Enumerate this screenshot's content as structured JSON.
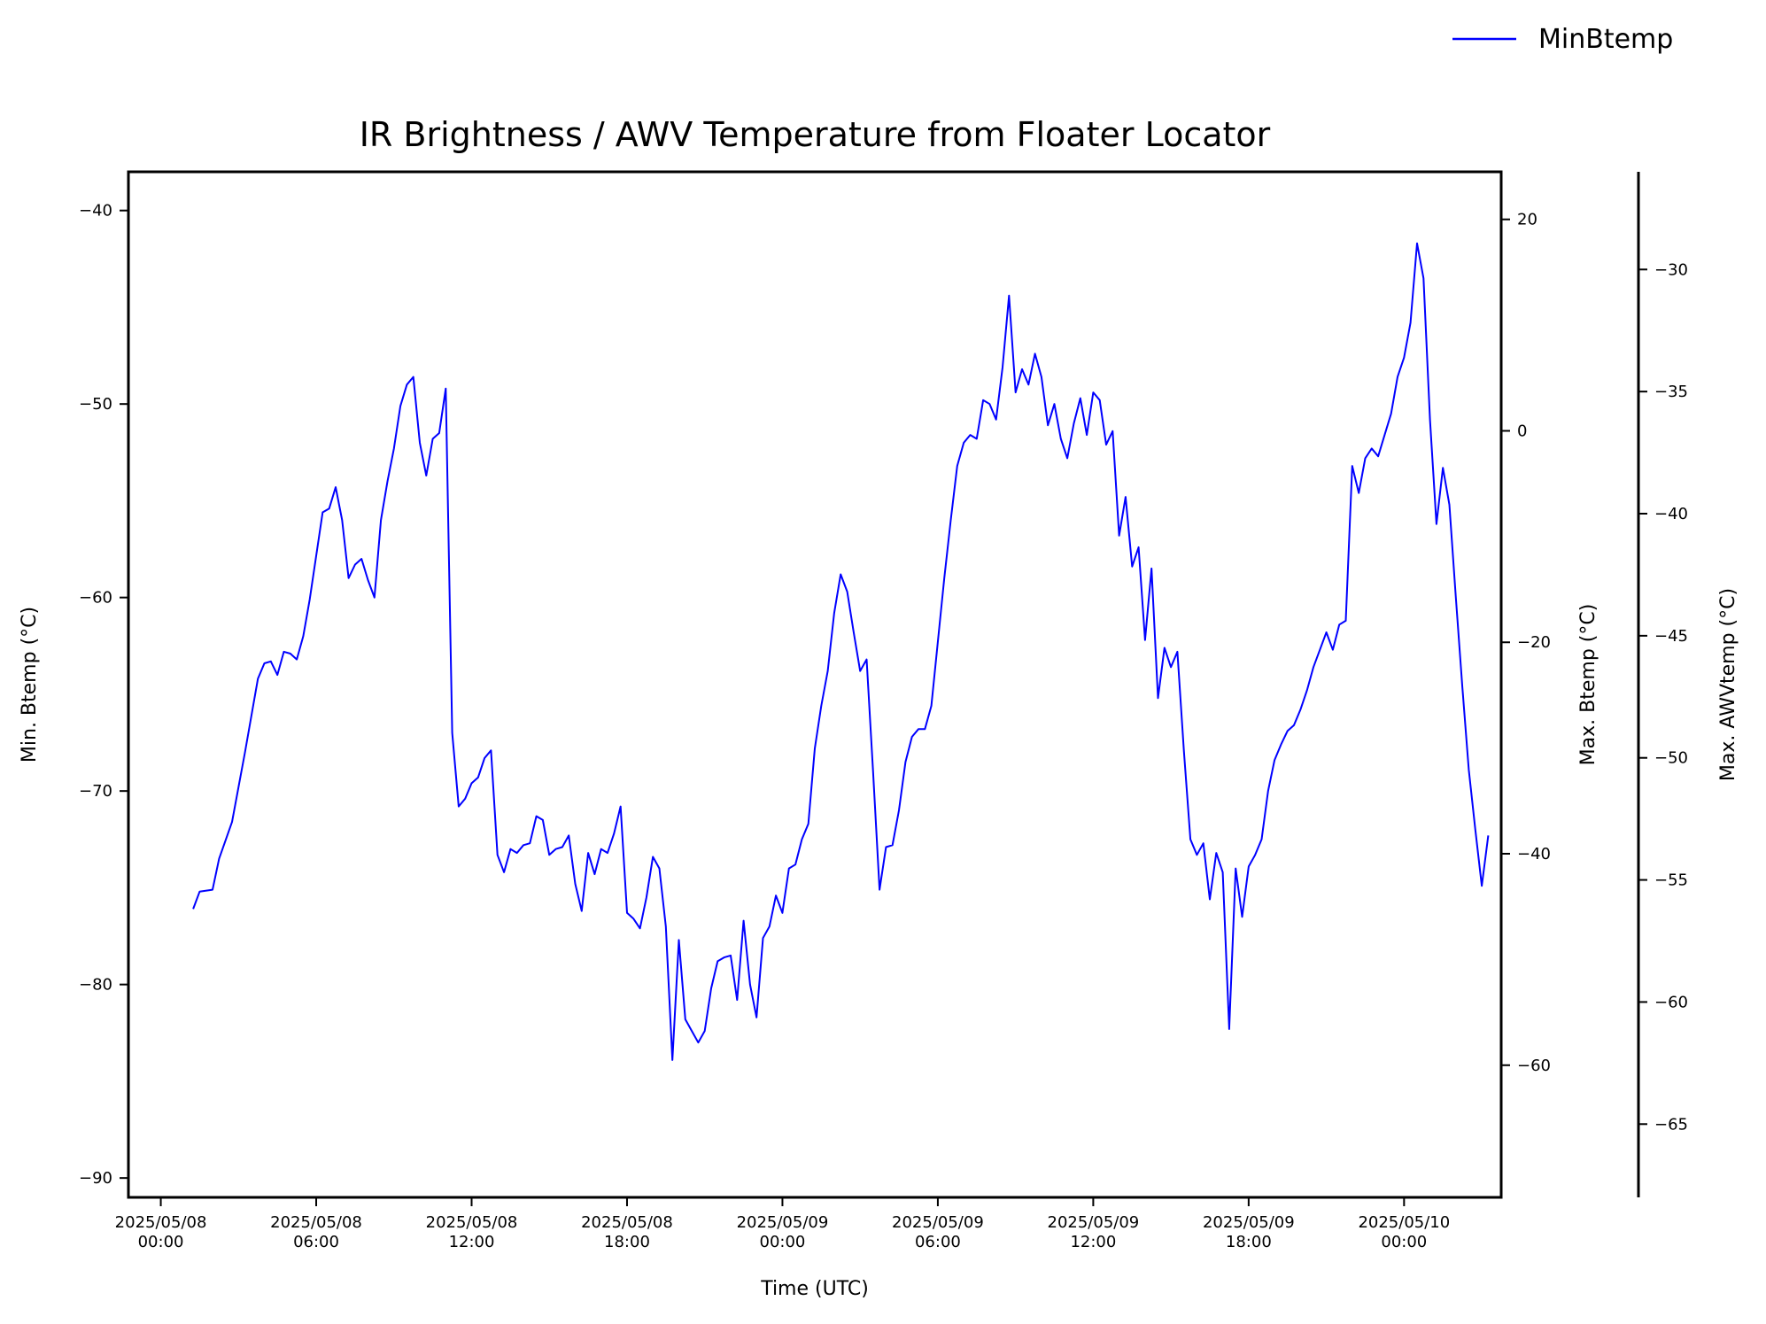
{
  "chart_data": {
    "type": "line",
    "title": "IR Brightness / AWV Temperature from Floater Locator",
    "xlabel": "Time (UTC)",
    "x_unit_note": "",
    "xlim": [
      "2025-05-07T22:45",
      "2025-05-10T03:45"
    ],
    "xticks": [
      {
        "x": "2025-05-08T00:00",
        "line1": "2025/05/08",
        "line2": "00:00"
      },
      {
        "x": "2025-05-08T06:00",
        "line1": "2025/05/08",
        "line2": "06:00"
      },
      {
        "x": "2025-05-08T12:00",
        "line1": "2025/05/08",
        "line2": "12:00"
      },
      {
        "x": "2025-05-08T18:00",
        "line1": "2025/05/08",
        "line2": "18:00"
      },
      {
        "x": "2025-05-09T00:00",
        "line1": "2025/05/09",
        "line2": "00:00"
      },
      {
        "x": "2025-05-09T06:00",
        "line1": "2025/05/09",
        "line2": "06:00"
      },
      {
        "x": "2025-05-09T12:00",
        "line1": "2025/05/09",
        "line2": "12:00"
      },
      {
        "x": "2025-05-09T18:00",
        "line1": "2025/05/09",
        "line2": "18:00"
      },
      {
        "x": "2025-05-10T00:00",
        "line1": "2025/05/10",
        "line2": "00:00"
      }
    ],
    "axes": {
      "left": {
        "label": "Min. Btemp (°C)",
        "ylim": [
          -91,
          -38
        ],
        "ticks": [
          -40,
          -50,
          -60,
          -70,
          -80,
          -90
        ]
      },
      "right1": {
        "label": "Max. Btemp (°C)",
        "ylim": [
          -72.5,
          24.5
        ],
        "ticks": [
          20,
          0,
          -20,
          -40,
          -60
        ]
      },
      "right2": {
        "label": "Max. AWVtemp (°C)",
        "ylim": [
          -68,
          -26
        ],
        "ticks": [
          -30,
          -35,
          -40,
          -45,
          -50,
          -55,
          -60,
          -65
        ]
      }
    },
    "legend_position": "top-right, outside axes",
    "series": [
      {
        "name": "MinBtemp",
        "axis": "left",
        "color": "#0000ff",
        "style": "solid",
        "points": [
          [
            "2025-05-08T01:15",
            -76.1
          ],
          [
            "2025-05-08T01:30",
            -75.2
          ],
          [
            "2025-05-08T02:00",
            -75.1
          ],
          [
            "2025-05-08T02:15",
            -73.5
          ],
          [
            "2025-05-08T02:45",
            -71.6
          ],
          [
            "2025-05-08T03:15",
            -68.0
          ],
          [
            "2025-05-08T03:45",
            -64.2
          ],
          [
            "2025-05-08T04:00",
            -63.4
          ],
          [
            "2025-05-08T04:15",
            -63.3
          ],
          [
            "2025-05-08T04:30",
            -64.0
          ],
          [
            "2025-05-08T04:45",
            -62.8
          ],
          [
            "2025-05-08T05:00",
            -62.9
          ],
          [
            "2025-05-08T05:15",
            -63.2
          ],
          [
            "2025-05-08T05:30",
            -62.0
          ],
          [
            "2025-05-08T05:45",
            -60.1
          ],
          [
            "2025-05-08T06:15",
            -55.6
          ],
          [
            "2025-05-08T06:30",
            -55.4
          ],
          [
            "2025-05-08T06:45",
            -54.3
          ],
          [
            "2025-05-08T07:00",
            -56.0
          ],
          [
            "2025-05-08T07:15",
            -59.0
          ],
          [
            "2025-05-08T07:30",
            -58.3
          ],
          [
            "2025-05-08T07:45",
            -58.0
          ],
          [
            "2025-05-08T08:00",
            -59.1
          ],
          [
            "2025-05-08T08:15",
            -60.0
          ],
          [
            "2025-05-08T08:30",
            -56.0
          ],
          [
            "2025-05-08T08:45",
            -54.0
          ],
          [
            "2025-05-08T09:00",
            -52.3
          ],
          [
            "2025-05-08T09:15",
            -50.1
          ],
          [
            "2025-05-08T09:30",
            -49.0
          ],
          [
            "2025-05-08T09:45",
            -48.6
          ],
          [
            "2025-05-08T10:00",
            -52.0
          ],
          [
            "2025-05-08T10:15",
            -53.7
          ],
          [
            "2025-05-08T10:30",
            -51.8
          ],
          [
            "2025-05-08T10:45",
            -51.5
          ],
          [
            "2025-05-08T11:00",
            -49.2
          ],
          [
            "2025-05-08T11:15",
            -67.0
          ],
          [
            "2025-05-08T11:30",
            -70.8
          ],
          [
            "2025-05-08T11:45",
            -70.4
          ],
          [
            "2025-05-08T12:00",
            -69.6
          ],
          [
            "2025-05-08T12:15",
            -69.3
          ],
          [
            "2025-05-08T12:30",
            -68.3
          ],
          [
            "2025-05-08T12:45",
            -67.9
          ],
          [
            "2025-05-08T13:00",
            -73.3
          ],
          [
            "2025-05-08T13:15",
            -74.2
          ],
          [
            "2025-05-08T13:30",
            -73.0
          ],
          [
            "2025-05-08T13:45",
            -73.2
          ],
          [
            "2025-05-08T14:00",
            -72.8
          ],
          [
            "2025-05-08T14:15",
            -72.7
          ],
          [
            "2025-05-08T14:30",
            -71.3
          ],
          [
            "2025-05-08T14:45",
            -71.5
          ],
          [
            "2025-05-08T15:00",
            -73.3
          ],
          [
            "2025-05-08T15:15",
            -73.0
          ],
          [
            "2025-05-08T15:30",
            -72.9
          ],
          [
            "2025-05-08T15:45",
            -72.3
          ],
          [
            "2025-05-08T16:00",
            -74.8
          ],
          [
            "2025-05-08T16:15",
            -76.2
          ],
          [
            "2025-05-08T16:30",
            -73.2
          ],
          [
            "2025-05-08T16:45",
            -74.3
          ],
          [
            "2025-05-08T17:00",
            -73.0
          ],
          [
            "2025-05-08T17:15",
            -73.2
          ],
          [
            "2025-05-08T17:30",
            -72.2
          ],
          [
            "2025-05-08T17:45",
            -70.8
          ],
          [
            "2025-05-08T18:00",
            -76.3
          ],
          [
            "2025-05-08T18:15",
            -76.6
          ],
          [
            "2025-05-08T18:30",
            -77.1
          ],
          [
            "2025-05-08T18:45",
            -75.5
          ],
          [
            "2025-05-08T19:00",
            -73.4
          ],
          [
            "2025-05-08T19:15",
            -74.0
          ],
          [
            "2025-05-08T19:30",
            -77.0
          ],
          [
            "2025-05-08T19:45",
            -83.9
          ],
          [
            "2025-05-08T20:00",
            -77.7
          ],
          [
            "2025-05-08T20:15",
            -81.8
          ],
          [
            "2025-05-08T20:30",
            -82.4
          ],
          [
            "2025-05-08T20:45",
            -83.0
          ],
          [
            "2025-05-08T21:00",
            -82.4
          ],
          [
            "2025-05-08T21:15",
            -80.2
          ],
          [
            "2025-05-08T21:30",
            -78.8
          ],
          [
            "2025-05-08T21:45",
            -78.6
          ],
          [
            "2025-05-08T22:00",
            -78.5
          ],
          [
            "2025-05-08T22:15",
            -80.8
          ],
          [
            "2025-05-08T22:30",
            -76.7
          ],
          [
            "2025-05-08T22:45",
            -80.0
          ],
          [
            "2025-05-08T23:00",
            -81.7
          ],
          [
            "2025-05-08T23:15",
            -77.6
          ],
          [
            "2025-05-08T23:30",
            -77.0
          ],
          [
            "2025-05-08T23:45",
            -75.4
          ],
          [
            "2025-05-09T00:00",
            -76.3
          ],
          [
            "2025-05-09T00:15",
            -74.0
          ],
          [
            "2025-05-09T00:30",
            -73.8
          ],
          [
            "2025-05-09T00:45",
            -72.5
          ],
          [
            "2025-05-09T01:00",
            -71.7
          ],
          [
            "2025-05-09T01:15",
            -67.8
          ],
          [
            "2025-05-09T01:30",
            -65.6
          ],
          [
            "2025-05-09T01:45",
            -63.8
          ],
          [
            "2025-05-09T02:00",
            -60.8
          ],
          [
            "2025-05-09T02:15",
            -58.8
          ],
          [
            "2025-05-09T02:30",
            -59.7
          ],
          [
            "2025-05-09T02:45",
            -61.8
          ],
          [
            "2025-05-09T03:00",
            -63.8
          ],
          [
            "2025-05-09T03:15",
            -63.2
          ],
          [
            "2025-05-09T03:30",
            -69.0
          ],
          [
            "2025-05-09T03:45",
            -75.1
          ],
          [
            "2025-05-09T04:00",
            -72.9
          ],
          [
            "2025-05-09T04:15",
            -72.8
          ],
          [
            "2025-05-09T04:30",
            -71.0
          ],
          [
            "2025-05-09T04:45",
            -68.5
          ],
          [
            "2025-05-09T05:00",
            -67.2
          ],
          [
            "2025-05-09T05:15",
            -66.8
          ],
          [
            "2025-05-09T05:30",
            -66.8
          ],
          [
            "2025-05-09T05:45",
            -65.6
          ],
          [
            "2025-05-09T06:15",
            -59.0
          ],
          [
            "2025-05-09T06:30",
            -56.0
          ],
          [
            "2025-05-09T06:45",
            -53.2
          ],
          [
            "2025-05-09T07:00",
            -52.0
          ],
          [
            "2025-05-09T07:15",
            -51.6
          ],
          [
            "2025-05-09T07:30",
            -51.8
          ],
          [
            "2025-05-09T07:45",
            -49.8
          ],
          [
            "2025-05-09T08:00",
            -50.0
          ],
          [
            "2025-05-09T08:15",
            -50.8
          ],
          [
            "2025-05-09T08:30",
            -48.1
          ],
          [
            "2025-05-09T08:45",
            -44.4
          ],
          [
            "2025-05-09T09:00",
            -49.4
          ],
          [
            "2025-05-09T09:15",
            -48.2
          ],
          [
            "2025-05-09T09:30",
            -49.0
          ],
          [
            "2025-05-09T09:45",
            -47.4
          ],
          [
            "2025-05-09T10:00",
            -48.6
          ],
          [
            "2025-05-09T10:15",
            -51.1
          ],
          [
            "2025-05-09T10:30",
            -50.0
          ],
          [
            "2025-05-09T10:45",
            -51.8
          ],
          [
            "2025-05-09T11:00",
            -52.8
          ],
          [
            "2025-05-09T11:15",
            -51.0
          ],
          [
            "2025-05-09T11:30",
            -49.7
          ],
          [
            "2025-05-09T11:45",
            -51.6
          ],
          [
            "2025-05-09T12:00",
            -49.4
          ],
          [
            "2025-05-09T12:15",
            -49.8
          ],
          [
            "2025-05-09T12:30",
            -52.1
          ],
          [
            "2025-05-09T12:45",
            -51.4
          ],
          [
            "2025-05-09T13:00",
            -56.8
          ],
          [
            "2025-05-09T13:15",
            -54.8
          ],
          [
            "2025-05-09T13:30",
            -58.4
          ],
          [
            "2025-05-09T13:45",
            -57.4
          ],
          [
            "2025-05-09T14:00",
            -62.2
          ],
          [
            "2025-05-09T14:15",
            -58.5
          ],
          [
            "2025-05-09T14:30",
            -65.2
          ],
          [
            "2025-05-09T14:45",
            -62.6
          ],
          [
            "2025-05-09T15:00",
            -63.6
          ],
          [
            "2025-05-09T15:15",
            -62.8
          ],
          [
            "2025-05-09T15:30",
            -67.9
          ],
          [
            "2025-05-09T15:45",
            -72.5
          ],
          [
            "2025-05-09T16:00",
            -73.3
          ],
          [
            "2025-05-09T16:15",
            -72.7
          ],
          [
            "2025-05-09T16:30",
            -75.6
          ],
          [
            "2025-05-09T16:45",
            -73.2
          ],
          [
            "2025-05-09T17:00",
            -74.2
          ],
          [
            "2025-05-09T17:15",
            -82.3
          ],
          [
            "2025-05-09T17:30",
            -74.0
          ],
          [
            "2025-05-09T17:45",
            -76.5
          ],
          [
            "2025-05-09T18:00",
            -73.9
          ],
          [
            "2025-05-09T18:15",
            -73.3
          ],
          [
            "2025-05-09T18:30",
            -72.5
          ],
          [
            "2025-05-09T18:45",
            -70.0
          ],
          [
            "2025-05-09T19:00",
            -68.4
          ],
          [
            "2025-05-09T19:15",
            -67.6
          ],
          [
            "2025-05-09T19:30",
            -66.9
          ],
          [
            "2025-05-09T19:45",
            -66.6
          ],
          [
            "2025-05-09T20:00",
            -65.8
          ],
          [
            "2025-05-09T20:15",
            -64.8
          ],
          [
            "2025-05-09T20:30",
            -63.6
          ],
          [
            "2025-05-09T20:45",
            -62.7
          ],
          [
            "2025-05-09T21:00",
            -61.8
          ],
          [
            "2025-05-09T21:15",
            -62.7
          ],
          [
            "2025-05-09T21:30",
            -61.4
          ],
          [
            "2025-05-09T21:45",
            -61.2
          ],
          [
            "2025-05-09T22:00",
            -53.2
          ],
          [
            "2025-05-09T22:15",
            -54.6
          ],
          [
            "2025-05-09T22:30",
            -52.8
          ],
          [
            "2025-05-09T22:45",
            -52.3
          ],
          [
            "2025-05-09T23:00",
            -52.7
          ],
          [
            "2025-05-09T23:15",
            -51.6
          ],
          [
            "2025-05-09T23:30",
            -50.5
          ],
          [
            "2025-05-09T23:45",
            -48.6
          ],
          [
            "2025-05-10T00:00",
            -47.6
          ],
          [
            "2025-05-10T00:15",
            -45.8
          ],
          [
            "2025-05-10T00:30",
            -41.7
          ],
          [
            "2025-05-10T00:45",
            -43.5
          ],
          [
            "2025-05-10T01:00",
            -50.8
          ],
          [
            "2025-05-10T01:15",
            -56.2
          ],
          [
            "2025-05-10T01:30",
            -53.3
          ],
          [
            "2025-05-10T01:45",
            -55.2
          ],
          [
            "2025-05-10T02:00",
            -60.0
          ],
          [
            "2025-05-10T02:15",
            -64.6
          ],
          [
            "2025-05-10T02:30",
            -68.9
          ],
          [
            "2025-05-10T02:45",
            -72.0
          ],
          [
            "2025-05-10T03:00",
            -74.9
          ],
          [
            "2025-05-10T03:15",
            -72.3
          ]
        ]
      }
    ]
  }
}
